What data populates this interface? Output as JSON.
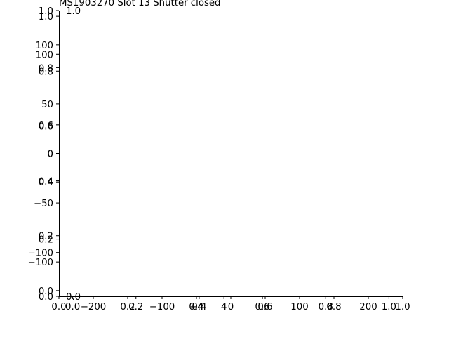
{
  "chart_data": {
    "type": "line",
    "title": "MS1903270 Slot 13 Shutter closed",
    "grid": false,
    "axes": [
      {
        "name": "main",
        "xlim": [
          0.0,
          1.0
        ],
        "ylim": [
          0.0,
          1.0
        ],
        "xticks": [
          "0.0",
          "0.2",
          "0.4",
          "0.6",
          "0.8",
          "1.0"
        ],
        "yticks": [
          "0.0",
          "0.2",
          "0.4",
          "0.6",
          "0.8",
          "1.0"
        ]
      },
      {
        "name": "inset-a",
        "xlim": [
          0.0,
          1.0
        ],
        "ylim": [
          0.0,
          1.0
        ],
        "xticks": [
          "0.0",
          "0.2",
          "0.4",
          "0.6",
          "0.8",
          "1.0"
        ],
        "yticks": [
          "0.0",
          "0.2",
          "0.4",
          "0.6",
          "0.8",
          "1.0"
        ]
      },
      {
        "name": "inset-b",
        "xlim": [
          -250,
          250
        ],
        "ylim": [
          -125,
          125
        ],
        "xticks": [
          "−200",
          "−100",
          "0",
          "100",
          "200"
        ],
        "yticks": [
          "−100",
          "−50",
          "0",
          "50",
          "100"
        ]
      },
      {
        "name": "inset-c",
        "xlim": [
          -100,
          100
        ],
        "ylim": [
          -100,
          100
        ],
        "xticks": [
          "−4",
          "4"
        ],
        "yticks": [
          "−100",
          "0",
          "100"
        ]
      }
    ]
  }
}
